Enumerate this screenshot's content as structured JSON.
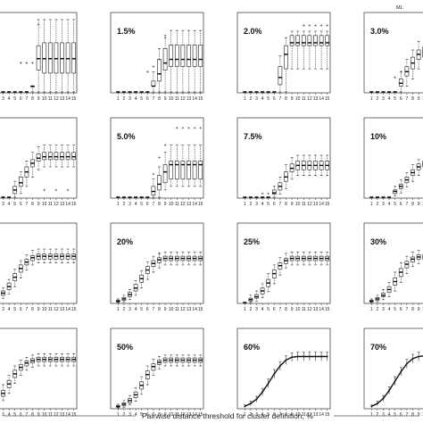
{
  "figure": {
    "xlabel": "Pairwise distance threshold for cluster definition, %",
    "corner_text": "ML",
    "x_ticks": [
      "1",
      "2",
      "3",
      "4",
      "5",
      "6",
      "7",
      "8",
      "9",
      "10",
      "11",
      "12",
      "13",
      "14",
      "15"
    ],
    "colors": {
      "box": "#ffffff",
      "stroke": "#222222",
      "median": "#000000"
    }
  },
  "chart_data": [
    {
      "type": "boxplot",
      "label": "%",
      "q1": [
        0,
        0,
        0,
        0,
        0,
        0,
        0,
        0.08,
        0.3,
        0.26,
        0.26,
        0.26,
        0.26,
        0.26,
        0.26
      ],
      "med": [
        0,
        0,
        0,
        0,
        0,
        0,
        0,
        0.08,
        0.46,
        0.46,
        0.46,
        0.46,
        0.46,
        0.46,
        0.46
      ],
      "q3": [
        0,
        0,
        0,
        0,
        0,
        0,
        0,
        0.08,
        0.64,
        0.68,
        0.68,
        0.68,
        0.68,
        0.68,
        0.68
      ],
      "wlo": [
        0,
        0,
        0,
        0,
        0,
        0,
        0,
        0,
        0,
        0,
        0,
        0,
        0,
        0,
        0
      ],
      "whi": [
        0,
        0,
        0,
        0,
        0,
        0,
        0,
        0.08,
        1,
        1,
        1,
        1,
        1,
        1,
        1
      ],
      "out": [
        [
          5,
          0.4
        ],
        [
          6,
          0.4
        ],
        [
          7,
          0.4
        ],
        [
          8,
          0.93
        ]
      ]
    },
    {
      "type": "boxplot",
      "label": "1.5%",
      "q1": [
        0,
        0,
        0,
        0,
        0,
        0,
        0.08,
        0.15,
        0.3,
        0.35,
        0.35,
        0.35,
        0.35,
        0.35,
        0.35
      ],
      "med": [
        0,
        0,
        0,
        0,
        0,
        0,
        0.08,
        0.25,
        0.4,
        0.45,
        0.45,
        0.45,
        0.45,
        0.45,
        0.45
      ],
      "q3": [
        0,
        0,
        0,
        0,
        0,
        0,
        0.15,
        0.45,
        0.6,
        0.65,
        0.65,
        0.65,
        0.65,
        0.65,
        0.65
      ],
      "wlo": [
        0,
        0,
        0,
        0,
        0,
        0,
        0,
        0,
        0,
        0,
        0,
        0,
        0,
        0,
        0
      ],
      "whi": [
        0,
        0,
        0,
        0,
        0,
        0,
        0.28,
        0.6,
        0.78,
        0.85,
        0.85,
        0.85,
        0.85,
        0.85,
        0.85
      ],
      "out": [
        [
          5,
          0.28
        ],
        [
          6,
          0.35
        ],
        [
          7,
          0.45
        ],
        [
          8,
          0.75
        ]
      ]
    },
    {
      "type": "boxplot",
      "label": "2.0%",
      "q1": [
        0,
        0,
        0,
        0,
        0,
        0,
        0.1,
        0.32,
        0.64,
        0.64,
        0.64,
        0.64,
        0.64,
        0.64,
        0.64
      ],
      "med": [
        0,
        0,
        0,
        0,
        0,
        0,
        0.2,
        0.52,
        0.68,
        0.68,
        0.68,
        0.68,
        0.68,
        0.68,
        0.68
      ],
      "q3": [
        0,
        0,
        0,
        0,
        0,
        0,
        0.35,
        0.64,
        0.78,
        0.78,
        0.78,
        0.78,
        0.78,
        0.78,
        0.78
      ],
      "wlo": [
        0,
        0,
        0,
        0,
        0,
        0,
        0,
        0,
        0.32,
        0.32,
        0.32,
        0.32,
        0.32,
        0.32,
        0.32
      ],
      "whi": [
        0,
        0,
        0,
        0,
        0,
        0,
        0.5,
        0.75,
        0.84,
        0.84,
        0.84,
        0.84,
        0.84,
        0.84,
        0.84
      ],
      "out": [
        [
          10,
          0.92
        ],
        [
          11,
          0.92
        ],
        [
          12,
          0.92
        ],
        [
          13,
          0.92
        ],
        [
          14,
          0.92
        ]
      ]
    },
    {
      "type": "boxplot",
      "label": "3.0%",
      "q1": [
        0,
        0,
        0,
        0,
        0,
        0.08,
        0.22,
        0.32,
        0.45,
        0.48,
        0.48,
        0.48,
        0.48,
        0.48,
        0.48
      ],
      "med": [
        0,
        0,
        0,
        0,
        0,
        0.12,
        0.28,
        0.4,
        0.52,
        0.55,
        0.55,
        0.55,
        0.55,
        0.55,
        0.55
      ],
      "q3": [
        0,
        0,
        0,
        0,
        0,
        0.18,
        0.35,
        0.48,
        0.58,
        0.62,
        0.62,
        0.62,
        0.62,
        0.62,
        0.62
      ],
      "wlo": [
        0,
        0,
        0,
        0,
        0,
        0,
        0.08,
        0.18,
        0.32,
        0.35,
        0.35,
        0.35,
        0.35,
        0.35,
        0.35
      ],
      "whi": [
        0,
        0,
        0,
        0,
        0,
        0.28,
        0.45,
        0.58,
        0.7,
        0.74,
        0.74,
        0.74,
        0.74,
        0.74,
        0.74
      ],
      "out": [
        [
          4,
          0.2
        ],
        [
          5,
          0.28
        ],
        [
          9,
          0.85
        ]
      ]
    },
    {
      "type": "boxplot",
      "label": "%",
      "q1": [
        0,
        0,
        0,
        0,
        0.05,
        0.15,
        0.28,
        0.42,
        0.5,
        0.52,
        0.52,
        0.52,
        0.52,
        0.52,
        0.52
      ],
      "med": [
        0,
        0,
        0,
        0,
        0.1,
        0.2,
        0.35,
        0.47,
        0.54,
        0.56,
        0.56,
        0.56,
        0.56,
        0.56,
        0.56
      ],
      "q3": [
        0,
        0,
        0,
        0,
        0.15,
        0.28,
        0.42,
        0.52,
        0.6,
        0.62,
        0.62,
        0.62,
        0.62,
        0.62,
        0.62
      ],
      "wlo": [
        0,
        0,
        0,
        0,
        0,
        0.05,
        0.15,
        0.28,
        0.38,
        0.42,
        0.42,
        0.42,
        0.42,
        0.42,
        0.42
      ],
      "whi": [
        0,
        0,
        0,
        0,
        0.22,
        0.35,
        0.5,
        0.62,
        0.7,
        0.72,
        0.72,
        0.72,
        0.72,
        0.72,
        0.72
      ],
      "out": [
        [
          9,
          0.1
        ],
        [
          11,
          0.1
        ],
        [
          13,
          0.1
        ]
      ]
    },
    {
      "type": "boxplot",
      "label": "5.0%",
      "q1": [
        0,
        0,
        0,
        0,
        0,
        0,
        0.03,
        0.1,
        0.2,
        0.25,
        0.25,
        0.25,
        0.25,
        0.25,
        0.25
      ],
      "med": [
        0,
        0,
        0,
        0,
        0,
        0,
        0.08,
        0.18,
        0.35,
        0.45,
        0.45,
        0.45,
        0.45,
        0.45,
        0.45
      ],
      "q3": [
        0,
        0,
        0,
        0,
        0,
        0,
        0.15,
        0.3,
        0.45,
        0.5,
        0.5,
        0.5,
        0.5,
        0.5,
        0.5
      ],
      "wlo": [
        0,
        0,
        0,
        0,
        0,
        0,
        0,
        0,
        0.1,
        0.15,
        0.15,
        0.15,
        0.15,
        0.15,
        0.15
      ],
      "whi": [
        0,
        0,
        0,
        0,
        0,
        0,
        0.25,
        0.42,
        0.62,
        0.72,
        0.72,
        0.72,
        0.72,
        0.72,
        0.72
      ],
      "out": [
        [
          6,
          0.32
        ],
        [
          7,
          0.55
        ],
        [
          8,
          0.72
        ],
        [
          10,
          0.96
        ],
        [
          11,
          0.96
        ],
        [
          12,
          0.96
        ],
        [
          13,
          0.96
        ],
        [
          14,
          0.96
        ]
      ]
    },
    {
      "type": "boxplot",
      "label": "7.5%",
      "q1": [
        0,
        0,
        0,
        0,
        0,
        0.04,
        0.1,
        0.22,
        0.35,
        0.38,
        0.38,
        0.38,
        0.38,
        0.38,
        0.38
      ],
      "med": [
        0,
        0,
        0,
        0,
        0,
        0.06,
        0.15,
        0.28,
        0.4,
        0.44,
        0.44,
        0.44,
        0.44,
        0.44,
        0.44
      ],
      "q3": [
        0,
        0,
        0,
        0,
        0,
        0.1,
        0.2,
        0.35,
        0.46,
        0.5,
        0.5,
        0.5,
        0.5,
        0.5,
        0.5
      ],
      "wlo": [
        0,
        0,
        0,
        0,
        0,
        0,
        0.04,
        0.12,
        0.25,
        0.3,
        0.3,
        0.3,
        0.3,
        0.3,
        0.3
      ],
      "whi": [
        0,
        0,
        0,
        0,
        0,
        0.15,
        0.28,
        0.45,
        0.55,
        0.58,
        0.58,
        0.58,
        0.58,
        0.58,
        0.58
      ],
      "out": [
        [
          3,
          0.05
        ],
        [
          4,
          0.05
        ]
      ]
    },
    {
      "type": "boxplot",
      "label": "10%",
      "q1": [
        0,
        0,
        0,
        0,
        0.05,
        0.12,
        0.2,
        0.3,
        0.38,
        0.42,
        0.42,
        0.42,
        0.42,
        0.42,
        0.42
      ],
      "med": [
        0,
        0,
        0,
        0,
        0.08,
        0.15,
        0.24,
        0.34,
        0.42,
        0.46,
        0.46,
        0.46,
        0.46,
        0.46,
        0.46
      ],
      "q3": [
        0,
        0,
        0,
        0,
        0.1,
        0.18,
        0.28,
        0.38,
        0.46,
        0.5,
        0.5,
        0.5,
        0.5,
        0.5,
        0.5
      ],
      "wlo": [
        0,
        0,
        0,
        0,
        0.02,
        0.06,
        0.14,
        0.22,
        0.3,
        0.34,
        0.34,
        0.34,
        0.34,
        0.34,
        0.34
      ],
      "whi": [
        0,
        0,
        0,
        0,
        0.15,
        0.24,
        0.34,
        0.45,
        0.52,
        0.56,
        0.56,
        0.56,
        0.56,
        0.56,
        0.56
      ],
      "out": [
        [
          9,
          0.55
        ]
      ]
    },
    {
      "type": "boxplot",
      "label": "%",
      "q1": [
        0,
        0.04,
        0.1,
        0.18,
        0.3,
        0.42,
        0.52,
        0.58,
        0.6,
        0.6,
        0.6,
        0.6,
        0.6,
        0.6,
        0.6
      ],
      "med": [
        0,
        0.06,
        0.13,
        0.22,
        0.35,
        0.47,
        0.56,
        0.62,
        0.64,
        0.64,
        0.64,
        0.64,
        0.64,
        0.64,
        0.64
      ],
      "q3": [
        0,
        0.08,
        0.16,
        0.27,
        0.4,
        0.52,
        0.6,
        0.65,
        0.67,
        0.67,
        0.67,
        0.67,
        0.67,
        0.67,
        0.67
      ],
      "wlo": [
        0,
        0.02,
        0.06,
        0.12,
        0.22,
        0.34,
        0.45,
        0.52,
        0.55,
        0.55,
        0.55,
        0.55,
        0.55,
        0.55,
        0.55
      ],
      "whi": [
        0,
        0.12,
        0.2,
        0.32,
        0.46,
        0.58,
        0.66,
        0.72,
        0.74,
        0.74,
        0.74,
        0.74,
        0.74,
        0.74,
        0.74
      ],
      "out": []
    },
    {
      "type": "boxplot",
      "label": "20%",
      "q1": [
        0.01,
        0.03,
        0.08,
        0.16,
        0.28,
        0.4,
        0.5,
        0.55,
        0.58,
        0.58,
        0.58,
        0.58,
        0.58,
        0.58,
        0.58
      ],
      "med": [
        0.02,
        0.05,
        0.11,
        0.2,
        0.33,
        0.45,
        0.54,
        0.59,
        0.61,
        0.61,
        0.61,
        0.61,
        0.61,
        0.61,
        0.61
      ],
      "q3": [
        0.03,
        0.07,
        0.14,
        0.25,
        0.38,
        0.5,
        0.58,
        0.62,
        0.64,
        0.64,
        0.64,
        0.64,
        0.64,
        0.64,
        0.64
      ],
      "wlo": [
        0,
        0.01,
        0.04,
        0.1,
        0.2,
        0.32,
        0.42,
        0.48,
        0.52,
        0.52,
        0.52,
        0.52,
        0.52,
        0.52,
        0.52
      ],
      "whi": [
        0.05,
        0.1,
        0.18,
        0.3,
        0.44,
        0.56,
        0.64,
        0.68,
        0.7,
        0.7,
        0.7,
        0.7,
        0.7,
        0.7,
        0.7
      ],
      "out": [
        [
          7,
          0.68
        ]
      ]
    },
    {
      "type": "boxplot",
      "label": "25%",
      "q1": [
        0,
        0.02,
        0.06,
        0.12,
        0.22,
        0.34,
        0.46,
        0.54,
        0.58,
        0.58,
        0.58,
        0.58,
        0.58,
        0.58,
        0.58
      ],
      "med": [
        0,
        0.04,
        0.08,
        0.16,
        0.27,
        0.4,
        0.51,
        0.58,
        0.61,
        0.61,
        0.61,
        0.61,
        0.61,
        0.61,
        0.61
      ],
      "q3": [
        0,
        0.06,
        0.11,
        0.2,
        0.32,
        0.45,
        0.55,
        0.61,
        0.64,
        0.64,
        0.64,
        0.64,
        0.64,
        0.64,
        0.64
      ],
      "wlo": [
        0,
        0,
        0.02,
        0.07,
        0.15,
        0.26,
        0.38,
        0.48,
        0.52,
        0.52,
        0.52,
        0.52,
        0.52,
        0.52,
        0.52
      ],
      "whi": [
        0,
        0.1,
        0.16,
        0.26,
        0.4,
        0.52,
        0.62,
        0.68,
        0.7,
        0.7,
        0.7,
        0.7,
        0.7,
        0.7,
        0.7
      ],
      "out": []
    },
    {
      "type": "boxplot",
      "label": "30%",
      "q1": [
        0.01,
        0.03,
        0.08,
        0.14,
        0.24,
        0.36,
        0.48,
        0.56,
        0.6,
        0.6,
        0.6,
        0.6,
        0.6,
        0.6,
        0.6
      ],
      "med": [
        0.02,
        0.05,
        0.1,
        0.18,
        0.29,
        0.42,
        0.53,
        0.6,
        0.63,
        0.63,
        0.63,
        0.63,
        0.63,
        0.63,
        0.63
      ],
      "q3": [
        0.03,
        0.07,
        0.13,
        0.22,
        0.34,
        0.47,
        0.57,
        0.63,
        0.66,
        0.66,
        0.66,
        0.66,
        0.66,
        0.66,
        0.66
      ],
      "wlo": [
        0,
        0.01,
        0.04,
        0.08,
        0.16,
        0.28,
        0.4,
        0.5,
        0.54,
        0.54,
        0.54,
        0.54,
        0.54,
        0.54,
        0.54
      ],
      "whi": [
        0.05,
        0.1,
        0.18,
        0.28,
        0.42,
        0.55,
        0.64,
        0.7,
        0.72,
        0.72,
        0.72,
        0.72,
        0.72,
        0.72,
        0.72
      ],
      "out": []
    },
    {
      "type": "boxplot",
      "label": "%",
      "q1": [
        0.02,
        0.08,
        0.16,
        0.28,
        0.42,
        0.52,
        0.58,
        0.62,
        0.64,
        0.64,
        0.64,
        0.64,
        0.64,
        0.64,
        0.64
      ],
      "med": [
        0.04,
        0.11,
        0.2,
        0.33,
        0.47,
        0.56,
        0.62,
        0.65,
        0.67,
        0.67,
        0.67,
        0.67,
        0.67,
        0.67,
        0.67
      ],
      "q3": [
        0.06,
        0.14,
        0.24,
        0.38,
        0.52,
        0.6,
        0.65,
        0.68,
        0.7,
        0.7,
        0.7,
        0.7,
        0.7,
        0.7,
        0.7
      ],
      "wlo": [
        0,
        0.04,
        0.1,
        0.2,
        0.34,
        0.45,
        0.52,
        0.56,
        0.58,
        0.58,
        0.58,
        0.58,
        0.58,
        0.58,
        0.58
      ],
      "whi": [
        0.1,
        0.2,
        0.32,
        0.45,
        0.58,
        0.66,
        0.7,
        0.73,
        0.75,
        0.75,
        0.75,
        0.75,
        0.75,
        0.75,
        0.75
      ],
      "out": []
    },
    {
      "type": "boxplot",
      "label": "50%",
      "q1": [
        0.01,
        0.03,
        0.07,
        0.14,
        0.26,
        0.4,
        0.52,
        0.6,
        0.63,
        0.63,
        0.63,
        0.63,
        0.63,
        0.63,
        0.63
      ],
      "med": [
        0.02,
        0.05,
        0.1,
        0.18,
        0.31,
        0.46,
        0.57,
        0.63,
        0.66,
        0.66,
        0.66,
        0.66,
        0.66,
        0.66,
        0.66
      ],
      "q3": [
        0.03,
        0.07,
        0.13,
        0.22,
        0.36,
        0.51,
        0.61,
        0.66,
        0.69,
        0.69,
        0.69,
        0.69,
        0.69,
        0.69,
        0.69
      ],
      "wlo": [
        0,
        0.01,
        0.04,
        0.09,
        0.19,
        0.32,
        0.45,
        0.54,
        0.58,
        0.58,
        0.58,
        0.58,
        0.58,
        0.58,
        0.58
      ],
      "whi": [
        0.05,
        0.1,
        0.17,
        0.28,
        0.43,
        0.58,
        0.67,
        0.71,
        0.73,
        0.73,
        0.73,
        0.73,
        0.73,
        0.73,
        0.73
      ],
      "out": []
    },
    {
      "type": "line",
      "label": "60%",
      "mean": [
        0.02,
        0.06,
        0.12,
        0.22,
        0.34,
        0.47,
        0.58,
        0.66,
        0.7,
        0.71,
        0.71,
        0.71,
        0.71,
        0.71,
        0.71
      ],
      "err": [
        0.02,
        0.03,
        0.04,
        0.05,
        0.06,
        0.06,
        0.06,
        0.06,
        0.06,
        0.06,
        0.06,
        0.06,
        0.06,
        0.06,
        0.06
      ]
    },
    {
      "type": "line",
      "label": "70%",
      "mean": [
        0.02,
        0.06,
        0.13,
        0.24,
        0.37,
        0.5,
        0.61,
        0.68,
        0.71,
        0.72,
        0.72,
        0.72,
        0.72,
        0.72,
        0.72
      ],
      "err": [
        0.02,
        0.03,
        0.04,
        0.05,
        0.06,
        0.06,
        0.06,
        0.06,
        0.06,
        0.06,
        0.06,
        0.06,
        0.06,
        0.06,
        0.06
      ]
    }
  ]
}
